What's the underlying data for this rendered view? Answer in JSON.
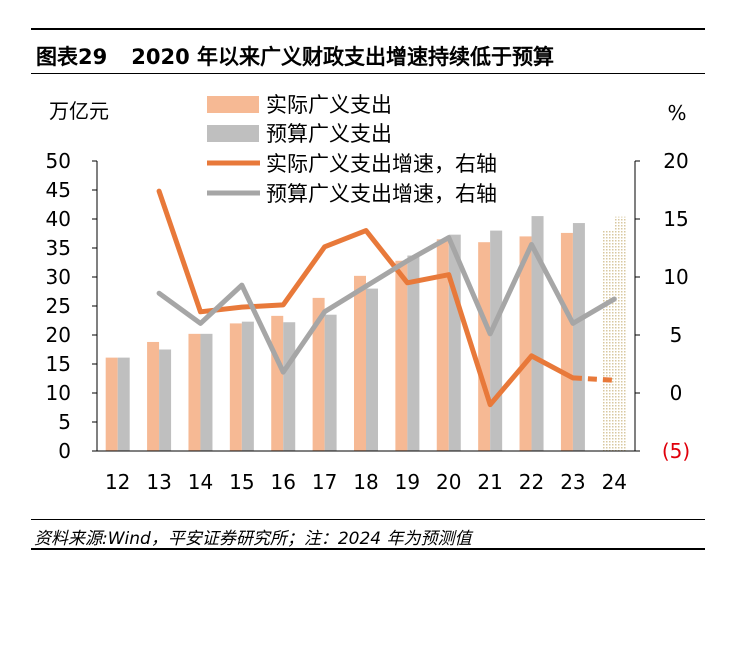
{
  "figure": {
    "label": "图表29",
    "title": "2020 年以来广义财政支出增速持续低于预算",
    "source": "资料来源:Wind，平安证券研究所；注：2024 年为预测值"
  },
  "colors": {
    "actual_bar": "#F6B994",
    "budget_bar": "#BFBFBF",
    "actual_line": "#E8793A",
    "budget_line": "#A6A6A6",
    "negative_label": "#E0000B",
    "forecast_hatch": "#D8C8A0"
  },
  "chart_data": {
    "type": "bar+line",
    "categories": [
      "12",
      "13",
      "14",
      "15",
      "16",
      "17",
      "18",
      "19",
      "20",
      "21",
      "22",
      "23",
      "24"
    ],
    "y_left": {
      "unit_label": "万亿元",
      "ylim": [
        0,
        50
      ],
      "ticks": [
        "0",
        "5",
        "10",
        "15",
        "20",
        "25",
        "30",
        "35",
        "40",
        "45",
        "50"
      ]
    },
    "y_right": {
      "unit_label": "%",
      "ylim": [
        -5,
        20
      ],
      "ticks": [
        "(5)",
        "0",
        "5",
        "10",
        "15",
        "20"
      ]
    },
    "series": [
      {
        "name": "实际广义支出",
        "kind": "bar",
        "axis": "left",
        "values": [
          16.1,
          18.8,
          20.2,
          22.0,
          23.3,
          26.4,
          30.2,
          32.8,
          36.5,
          36.0,
          37.0,
          37.6,
          38.0
        ]
      },
      {
        "name": "预算广义支出",
        "kind": "bar",
        "axis": "left",
        "values": [
          16.1,
          17.5,
          20.2,
          22.3,
          22.2,
          23.5,
          28.0,
          33.7,
          37.3,
          38.0,
          40.5,
          39.3,
          40.4
        ]
      },
      {
        "name": "实际广义支出增速，右轴",
        "kind": "line",
        "axis": "right",
        "values": [
          null,
          17.4,
          7.0,
          7.4,
          7.6,
          12.6,
          14.0,
          9.5,
          10.2,
          -1.0,
          3.2,
          1.3,
          1.1
        ],
        "forecast_from_index": 11
      },
      {
        "name": "预算广义支出增速，右轴",
        "kind": "line",
        "axis": "right",
        "values": [
          null,
          8.6,
          6.0,
          9.3,
          1.8,
          7.0,
          9.2,
          11.4,
          13.4,
          5.1,
          12.8,
          6.0,
          8.1
        ]
      }
    ],
    "forecast_category": "24",
    "legend_position": "top-center",
    "grid": false
  }
}
